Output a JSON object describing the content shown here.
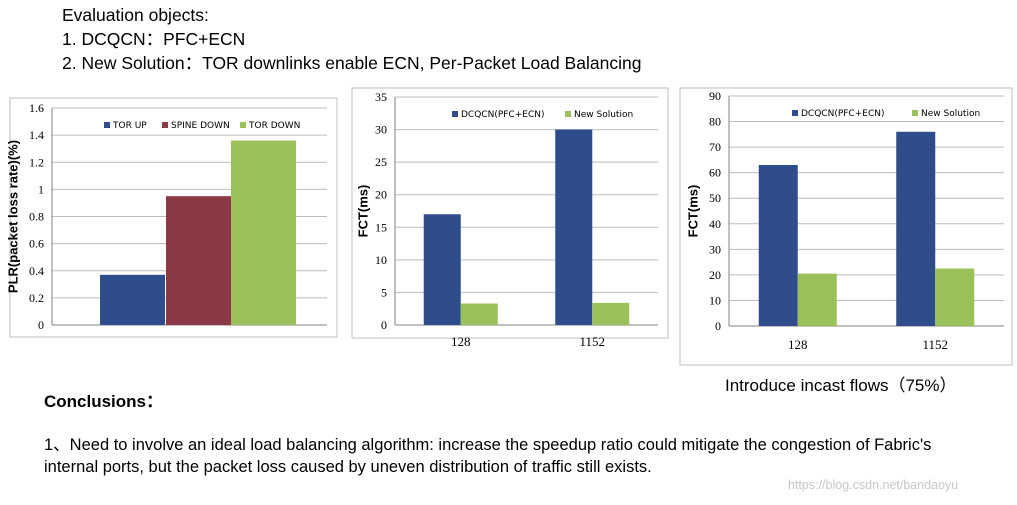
{
  "header": {
    "line1": "Evaluation objects:",
    "line2": "1. DCQCN：PFC+ECN",
    "line3": "2. New Solution：TOR downlinks enable ECN, Per-Packet Load Balancing"
  },
  "colors": {
    "blue": "#2E4D8A",
    "red": "#8B3A45",
    "green": "#9BC15A"
  },
  "chart_data": [
    {
      "type": "bar",
      "title": "",
      "xlabel": "",
      "ylabel": "PLR(packet loss rate)(%)",
      "categories": [
        ""
      ],
      "ylim": [
        0,
        1.6
      ],
      "yticks": [
        "0",
        "0.2",
        "0.4",
        "0.6",
        "0.8",
        "1",
        "1.2",
        "1.4",
        "1.6"
      ],
      "series": [
        {
          "name": "TOR UP",
          "values": [
            0.37
          ]
        },
        {
          "name": "SPINE DOWN",
          "values": [
            0.95
          ]
        },
        {
          "name": "TOR DOWN",
          "values": [
            1.36
          ]
        }
      ],
      "legend": "top"
    },
    {
      "type": "bar",
      "title": "",
      "xlabel": "",
      "ylabel": "FCT(ms)",
      "categories": [
        "128",
        "1152"
      ],
      "ylim": [
        0,
        35
      ],
      "yticks": [
        "0",
        "5",
        "10",
        "15",
        "20",
        "25",
        "30",
        "35"
      ],
      "series": [
        {
          "name": "DCQCN(PFC+ECN)",
          "values": [
            17,
            30
          ]
        },
        {
          "name": "New Solution",
          "values": [
            3.3,
            3.4
          ]
        }
      ],
      "legend": "top"
    },
    {
      "type": "bar",
      "title": "",
      "xlabel": "Introduce incast flows（75%）",
      "ylabel": "FCT(ms)",
      "categories": [
        "128",
        "1152"
      ],
      "ylim": [
        0,
        90
      ],
      "yticks": [
        "0",
        "10",
        "20",
        "30",
        "40",
        "50",
        "60",
        "70",
        "80",
        "90"
      ],
      "series": [
        {
          "name": "DCQCN(PFC+ECN)",
          "values": [
            63,
            76
          ]
        },
        {
          "name": "New Solution",
          "values": [
            20.5,
            22.5
          ]
        }
      ],
      "legend": "top"
    }
  ],
  "conclusions": {
    "title": "Conclusions：",
    "item1": "1、Need to involve an ideal load balancing algorithm: increase the speedup ratio could mitigate the congestion of Fabric's internal ports, but the packet loss caused by uneven distribution of traffic still exists."
  },
  "watermark": "https://blog.csdn.net/bandaoyu"
}
